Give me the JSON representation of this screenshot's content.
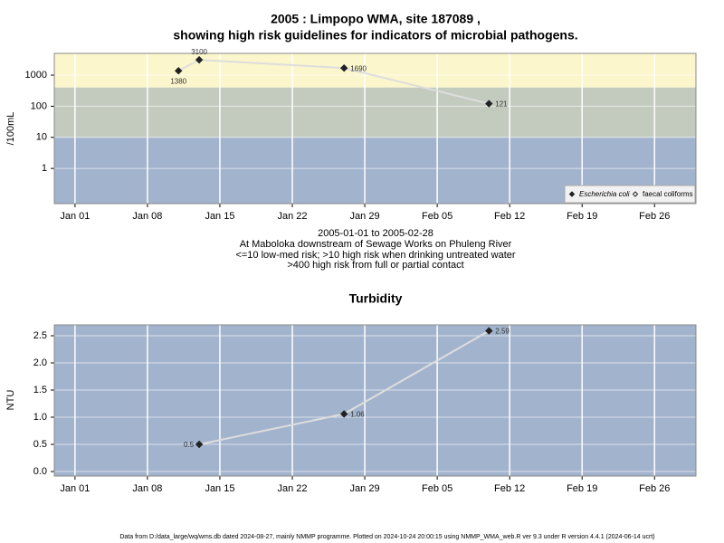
{
  "chart_data": [
    {
      "type": "line",
      "title": "2005 : Limpopo WMA, site 187089 ,",
      "subtitle": "showing high risk guidelines for indicators of microbial pathogens.",
      "ylabel": "/100mL",
      "log_y": true,
      "x": [
        "Jan 11",
        "Jan 13",
        "Jan 27",
        "Feb 10"
      ],
      "series": [
        {
          "name": "Escherichia coli",
          "color": "#222222",
          "marker": "filled",
          "values": [
            1380,
            3100,
            1690,
            121
          ]
        },
        {
          "name": "faecal coliforms",
          "color": "#222222",
          "marker": "open",
          "values": [
            null,
            null,
            null,
            null
          ]
        }
      ],
      "line_color": "#dddddd",
      "xlim": [
        "Dec 30",
        "Mar 02"
      ],
      "xticks": [
        "Jan 01",
        "Jan 08",
        "Jan 15",
        "Jan 22",
        "Jan 29",
        "Feb 05",
        "Feb 12",
        "Feb 19",
        "Feb 26"
      ],
      "ylim": [
        0.074,
        5000
      ],
      "yticks": [
        1,
        10,
        100,
        1000
      ],
      "grid": true,
      "bands": [
        {
          "min": 400,
          "color": "#fbf6cc"
        },
        {
          "min": 10,
          "max": 400,
          "color": "#c3cbbf"
        },
        {
          "max": 10,
          "color": "#a2b3cd"
        }
      ],
      "legend": "bottom-right",
      "notes": [
        "2005-01-01 to 2005-02-28",
        "At Maboloka downstream of Sewage Works on Phuleng River",
        "<=10 low-med risk; >10 high risk when drinking untreated water",
        ">400 high risk from full or partial contact"
      ]
    },
    {
      "type": "line",
      "title": "Turbidity",
      "ylabel": "NTU",
      "log_y": false,
      "x": [
        "Jan 13",
        "Jan 27",
        "Feb 10"
      ],
      "series": [
        {
          "color": "#222222",
          "marker": "filled",
          "values": [
            0.5,
            1.06,
            2.59
          ]
        }
      ],
      "line_color": "#dddddd",
      "xlim": [
        "Dec 30",
        "Mar 02"
      ],
      "xticks": [
        "Jan 01",
        "Jan 08",
        "Jan 15",
        "Jan 22",
        "Jan 29",
        "Feb 05",
        "Feb 12",
        "Feb 19",
        "Feb 26"
      ],
      "ylim": [
        -0.083,
        2.7
      ],
      "yticks": [
        {
          "value": 0,
          "label": "0.0"
        },
        0.5,
        {
          "value": 1,
          "label": "1.0"
        },
        1.5,
        {
          "value": 2,
          "label": "2.0"
        },
        2.5
      ],
      "grid": true,
      "background": "#a2b3cd"
    }
  ],
  "footer": "Data from D:/data_large/wq/wms.db dated 2024-08-27, mainly NMMP programme. Plotted on 2024-10-24 20:00:15 using NMMP_WMA_web.R ver 9.3 under R version 4.4.1 (2024-06-14 ucrt)"
}
